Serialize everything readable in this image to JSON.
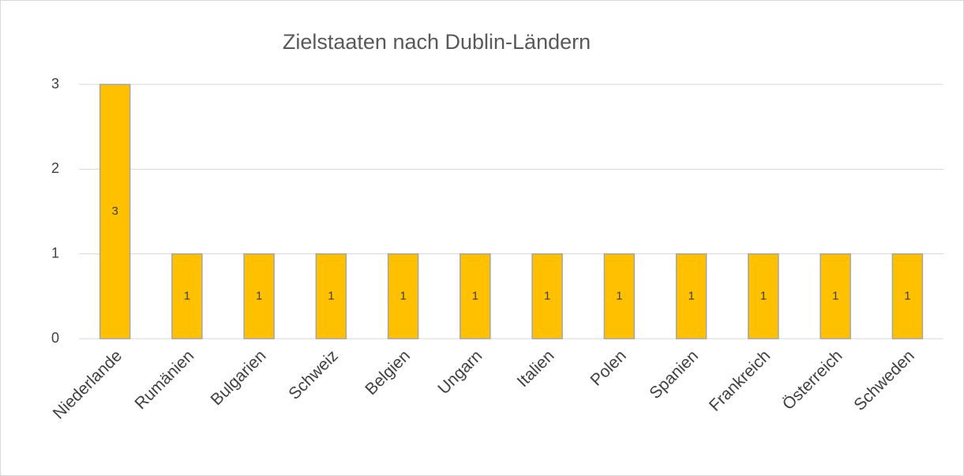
{
  "chart_data": {
    "type": "bar",
    "title": "Zielstaaten nach Dublin-Ländern",
    "categories": [
      "Niederlande",
      "Rumänien",
      "Bulgarien",
      "Schweiz",
      "Belgien",
      "Ungarn",
      "Italien",
      "Polen",
      "Spanien",
      "Frankreich",
      "Österreich",
      "Schweden"
    ],
    "values": [
      3,
      1,
      1,
      1,
      1,
      1,
      1,
      1,
      1,
      1,
      1,
      1
    ],
    "color": "#ffc000",
    "ylim": [
      0,
      3
    ],
    "yticks": [
      0,
      1,
      2,
      3
    ],
    "grid": true,
    "data_labels": true
  }
}
